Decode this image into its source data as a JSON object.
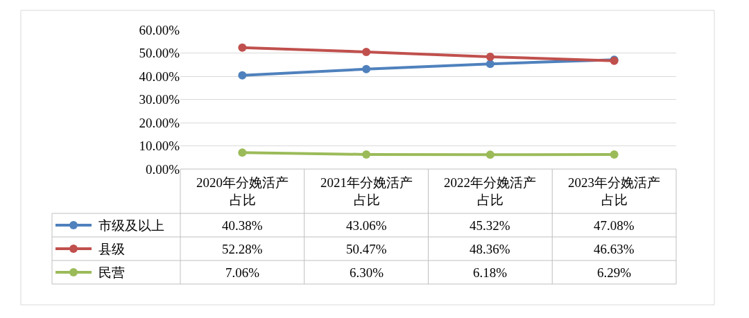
{
  "chart_data": {
    "type": "line",
    "categories": [
      "2020年分娩活产占比",
      "2021年分娩活产占比",
      "2022年分娩活产占比",
      "2023年分娩活产占比"
    ],
    "series": [
      {
        "name": "市级及以上",
        "color": "#4f81bd",
        "values": [
          40.38,
          43.06,
          45.32,
          47.08
        ],
        "value_labels": [
          "40.38%",
          "43.06%",
          "45.32%",
          "47.08%"
        ]
      },
      {
        "name": "县级",
        "color": "#c0504d",
        "values": [
          52.28,
          50.47,
          48.36,
          46.63
        ],
        "value_labels": [
          "52.28%",
          "50.47%",
          "48.36%",
          "46.63%"
        ]
      },
      {
        "name": "民营",
        "color": "#9bbb59",
        "values": [
          7.06,
          6.3,
          6.18,
          6.29
        ],
        "value_labels": [
          "7.06%",
          "6.30%",
          "6.18%",
          "6.29%"
        ]
      }
    ],
    "ylim": [
      0,
      60
    ],
    "yticks": [
      {
        "value": 0,
        "label": "0.00%"
      },
      {
        "value": 10,
        "label": "10.00%"
      },
      {
        "value": 20,
        "label": "20.00%"
      },
      {
        "value": 30,
        "label": "30.00%"
      },
      {
        "value": 40,
        "label": "40.00%"
      },
      {
        "value": 50,
        "label": "50.00%"
      },
      {
        "value": 60,
        "label": "60.00%"
      }
    ],
    "grid": "y",
    "legend": "bottom left",
    "marker": "circle",
    "line_style": "solid"
  }
}
